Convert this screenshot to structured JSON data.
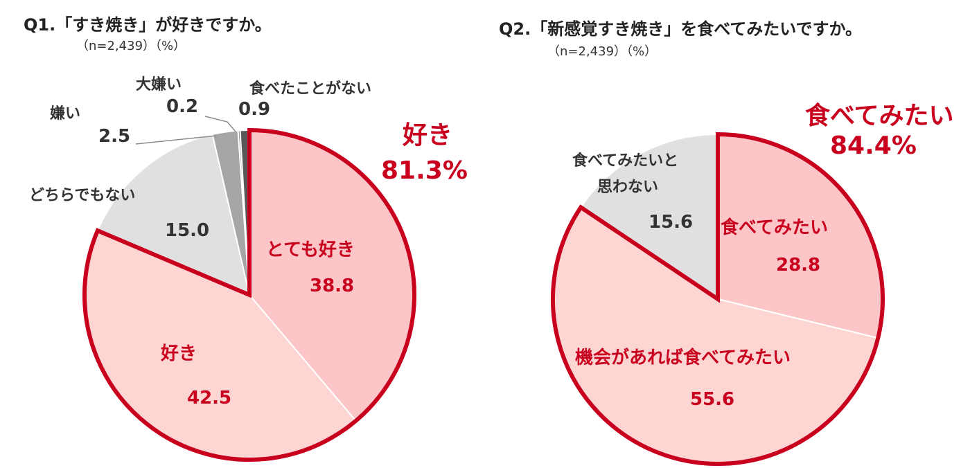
{
  "colors": {
    "accent_red": "#c8001e",
    "pink_dark": "#fcc5c8",
    "pink_light": "#fdd6d4",
    "gray_light": "#e0e0e0",
    "gray_mid": "#a6a6a6",
    "gray_dark": "#7a7a7a",
    "gray_darkest": "#595959"
  },
  "chart_data": [
    {
      "type": "pie",
      "title": "Q1.「すき焼き」が好きですか。",
      "note": "（n=2,439）（%）",
      "slices": [
        {
          "label": "とても好き",
          "value": 38.8,
          "display": "38.8"
        },
        {
          "label": "好き",
          "value": 42.5,
          "display": "42.5"
        },
        {
          "label": "どちらでもない",
          "value": 15.0,
          "display": "15.0"
        },
        {
          "label": "嫌い",
          "value": 2.5,
          "display": "2.5"
        },
        {
          "label": "大嫌い",
          "value": 0.2,
          "display": "0.2"
        },
        {
          "label": "食べたことがない",
          "value": 0.9,
          "display": "0.9"
        }
      ],
      "group": {
        "label": "好き",
        "value_text": "81.3%"
      }
    },
    {
      "type": "pie",
      "title": "Q2.「新感覚すき焼き」を食べてみたいですか。",
      "note": "（n=2,439）（%）",
      "slices": [
        {
          "label": "食べてみたい",
          "value": 28.8,
          "display": "28.8"
        },
        {
          "label": "機会があれば食べてみたい",
          "value": 55.6,
          "display": "55.6"
        },
        {
          "label": "食べてみたいと思わない",
          "label_line1": "食べてみたいと",
          "label_line2": "思わない",
          "value": 15.6,
          "display": "15.6"
        }
      ],
      "group": {
        "label": "食べてみたい",
        "value_text": "84.4%"
      }
    }
  ]
}
